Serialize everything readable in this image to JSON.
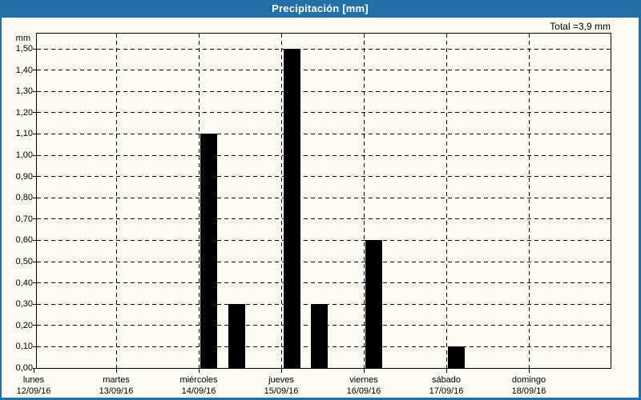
{
  "window": {
    "title": "Precipitación [mm]"
  },
  "summary": {
    "total_label": "Total =3,9 mm"
  },
  "colors": {
    "header_bg": "#2171A8",
    "window_border": "#2171A8",
    "background": "#FBFBF4",
    "title_text": "#FFFFFF",
    "bar": "#000000",
    "grid": "#000000",
    "text": "#000000"
  },
  "chart_data": {
    "type": "bar",
    "title": "Precipitación [mm]",
    "y_unit": "mm",
    "ylim": [
      0,
      1.575
    ],
    "grid": "dashed-both-axes",
    "legend": "none",
    "total_mm": 3.9,
    "y_ticks": [
      {
        "value": 0.0,
        "label": "0,00"
      },
      {
        "value": 0.1,
        "label": "0,10"
      },
      {
        "value": 0.2,
        "label": "0,20"
      },
      {
        "value": 0.3,
        "label": "0,30"
      },
      {
        "value": 0.4,
        "label": "0,40"
      },
      {
        "value": 0.5,
        "label": "0,50"
      },
      {
        "value": 0.6,
        "label": "0,60"
      },
      {
        "value": 0.7,
        "label": "0,70"
      },
      {
        "value": 0.8,
        "label": "0,80"
      },
      {
        "value": 0.9,
        "label": "0,90"
      },
      {
        "value": 1.0,
        "label": "1,00"
      },
      {
        "value": 1.1,
        "label": "1,10"
      },
      {
        "value": 1.2,
        "label": "1,20"
      },
      {
        "value": 1.3,
        "label": "1,30"
      },
      {
        "value": 1.4,
        "label": "1,40"
      },
      {
        "value": 1.5,
        "label": "1,50"
      }
    ],
    "categories": [
      {
        "day": "lunes",
        "date": "12/09/16"
      },
      {
        "day": "martes",
        "date": "13/09/16"
      },
      {
        "day": "miércoles",
        "date": "14/09/16"
      },
      {
        "day": "jueves",
        "date": "15/09/16"
      },
      {
        "day": "viernes",
        "date": "16/09/16"
      },
      {
        "day": "sábado",
        "date": "17/09/16"
      },
      {
        "day": "domingo",
        "date": "18/09/16"
      }
    ],
    "bars": [
      {
        "day": "miércoles",
        "date": "14/09/16",
        "day_index": 2,
        "day_fraction": 0.022,
        "value": 1.1
      },
      {
        "day": "miércoles",
        "date": "14/09/16",
        "day_index": 2,
        "day_fraction": 0.355,
        "value": 0.3
      },
      {
        "day": "jueves",
        "date": "15/09/16",
        "day_index": 3,
        "day_fraction": 0.033,
        "value": 1.5
      },
      {
        "day": "jueves",
        "date": "15/09/16",
        "day_index": 3,
        "day_fraction": 0.356,
        "value": 0.3
      },
      {
        "day": "viernes",
        "date": "16/09/16",
        "day_index": 4,
        "day_fraction": 0.022,
        "value": 0.6
      },
      {
        "day": "sábado",
        "date": "17/09/16",
        "day_index": 5,
        "day_fraction": 0.022,
        "value": 0.1
      }
    ]
  }
}
